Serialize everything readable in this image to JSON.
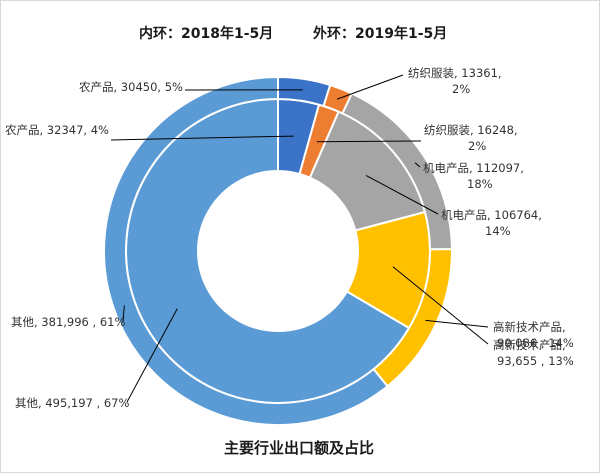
{
  "chart_data": {
    "type": "donut",
    "subtitle_inner": "内环：2018年1-5月",
    "subtitle_outer": "外环：2019年1-5月",
    "title": "主要行业出口额及占比",
    "rings": [
      {
        "name": "内环：2018年1-5月",
        "slices": [
          {
            "category": "农产品",
            "value": 32347,
            "percent": 4,
            "label": "农产品, 32347, 4%"
          },
          {
            "category": "纺织服装",
            "value": 16248,
            "percent": 2,
            "label_lines": [
              "纺织服装, 16248,",
              "2%"
            ]
          },
          {
            "category": "机电产品",
            "value": 106764,
            "percent": 14,
            "label_lines": [
              "机电产品, 106764,",
              "14%"
            ]
          },
          {
            "category": "高新技术产品",
            "value": 93655,
            "percent": 13,
            "label_lines": [
              "高新技术产品,",
              "93,655 , 13%"
            ]
          },
          {
            "category": "其他",
            "value": 495197,
            "percent": 67,
            "label": "其他, 495,197 , 67%"
          }
        ]
      },
      {
        "name": "外环：2019年1-5月",
        "slices": [
          {
            "category": "农产品",
            "value": 30450,
            "percent": 5,
            "label": "农产品, 30450, 5%"
          },
          {
            "category": "纺织服装",
            "value": 13361,
            "percent": 2,
            "label_lines": [
              "纺织服装, 13361,",
              "2%"
            ]
          },
          {
            "category": "机电产品",
            "value": 112097,
            "percent": 18,
            "label_lines": [
              "机电产品, 112097,",
              "18%"
            ]
          },
          {
            "category": "高新技术产品",
            "value": 90086,
            "percent": 14,
            "label_lines": [
              "高新技术产品,",
              "90,086 , 14%"
            ]
          },
          {
            "category": "其他",
            "value": 381996,
            "percent": 61,
            "label": "其他, 381,996 , 61%"
          }
        ]
      }
    ],
    "colors": {
      "农产品": "#3a73c8",
      "纺织服装": "#ed7d31",
      "机电产品": "#a5a5a5",
      "高新技术产品": "#ffc000",
      "其他": "#5b9bd5"
    },
    "legend": "none"
  }
}
